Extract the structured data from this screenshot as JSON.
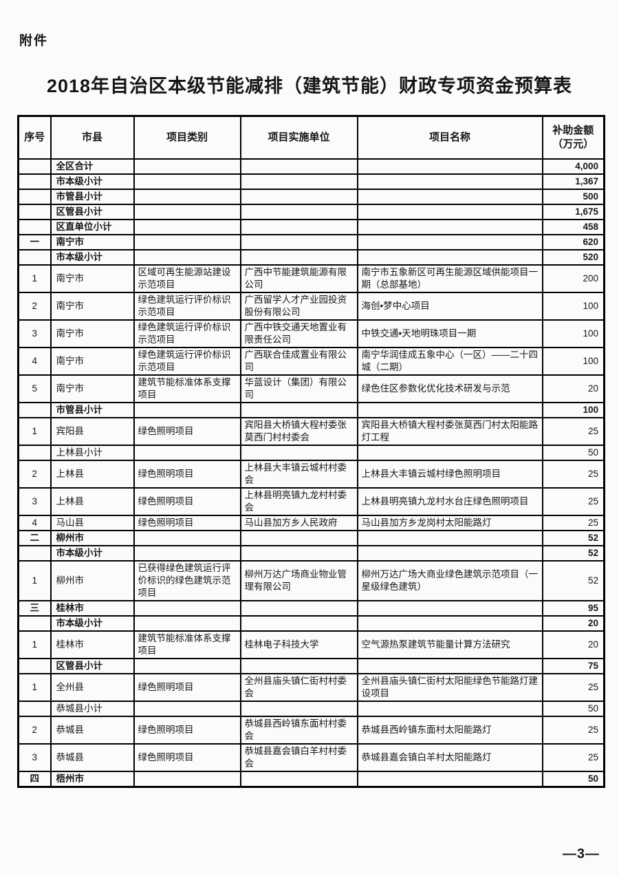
{
  "page": {
    "attachment_label": "附件",
    "title": "2018年自治区本级节能减排（建筑节能）财政专项资金预算表",
    "page_number": "—3—"
  },
  "table": {
    "headers": [
      "序号",
      "市县",
      "项目类别",
      "项目实施单位",
      "项目名称",
      "补助金额\n（万元）"
    ],
    "rows": [
      {
        "num": "",
        "region": "全区合计",
        "category": "",
        "unit": "",
        "name": "",
        "amount": "4,000",
        "bold": true
      },
      {
        "num": "",
        "region": "市本级小计",
        "category": "",
        "unit": "",
        "name": "",
        "amount": "1,367",
        "bold": true
      },
      {
        "num": "",
        "region": "市管县小计",
        "category": "",
        "unit": "",
        "name": "",
        "amount": "500",
        "bold": true
      },
      {
        "num": "",
        "region": "区管县小计",
        "category": "",
        "unit": "",
        "name": "",
        "amount": "1,675",
        "bold": true
      },
      {
        "num": "",
        "region": "区直单位小计",
        "category": "",
        "unit": "",
        "name": "",
        "amount": "458",
        "bold": true
      },
      {
        "num": "一",
        "region": "南宁市",
        "category": "",
        "unit": "",
        "name": "",
        "amount": "620",
        "bold": true
      },
      {
        "num": "",
        "region": "市本级小计",
        "category": "",
        "unit": "",
        "name": "",
        "amount": "520",
        "bold": true
      },
      {
        "num": "1",
        "region": "南宁市",
        "category": "区域可再生能源站建设示范项目",
        "unit": "广西中节能建筑能源有限公司",
        "name": "南宁市五象新区可再生能源区域供能项目一期（总部基地）",
        "amount": "200",
        "bold": false
      },
      {
        "num": "2",
        "region": "南宁市",
        "category": "绿色建筑运行评价标识示范项目",
        "unit": "广西留学人才产业园投资股份有限公司",
        "name": "海创•梦中心项目",
        "amount": "100",
        "bold": false
      },
      {
        "num": "3",
        "region": "南宁市",
        "category": "绿色建筑运行评价标识示范项目",
        "unit": "广西中铁交通天地置业有限责任公司",
        "name": "中铁交通•天地明珠项目一期",
        "amount": "100",
        "bold": false
      },
      {
        "num": "4",
        "region": "南宁市",
        "category": "绿色建筑运行评价标识示范项目",
        "unit": "广西联合佳成置业有限公司",
        "name": "南宁华润佳成五象中心（一区）——二十四城（二期）",
        "amount": "100",
        "bold": false
      },
      {
        "num": "5",
        "region": "南宁市",
        "category": "建筑节能标准体系支撑项目",
        "unit": "华蓝设计（集团）有限公司",
        "name": "绿色住区参数化优化技术研发与示范",
        "amount": "20",
        "bold": false
      },
      {
        "num": "",
        "region": "市管县小计",
        "category": "",
        "unit": "",
        "name": "",
        "amount": "100",
        "bold": true
      },
      {
        "num": "1",
        "region": "宾阳县",
        "category": "绿色照明项目",
        "unit": "宾阳县大桥镇大程村委张莫西门村村委会",
        "name": "宾阳县大桥镇大程村委张莫西门村太阳能路灯工程",
        "amount": "25",
        "bold": false
      },
      {
        "num": "",
        "region": "上林县小计",
        "category": "",
        "unit": "",
        "name": "",
        "amount": "50",
        "bold": false
      },
      {
        "num": "2",
        "region": "上林县",
        "category": "绿色照明项目",
        "unit": "上林县大丰镇云城村村委会",
        "name": "上林县大丰镇云城村绿色照明项目",
        "amount": "25",
        "bold": false
      },
      {
        "num": "3",
        "region": "上林县",
        "category": "绿色照明项目",
        "unit": "上林县明亮镇九龙村村委会",
        "name": "上林县明亮镇九龙村水台庄绿色照明项目",
        "amount": "25",
        "bold": false
      },
      {
        "num": "4",
        "region": "马山县",
        "category": "绿色照明项目",
        "unit": "马山县加方乡人民政府",
        "name": "马山县加方乡龙岗村太阳能路灯",
        "amount": "25",
        "bold": false
      },
      {
        "num": "二",
        "region": "柳州市",
        "category": "",
        "unit": "",
        "name": "",
        "amount": "52",
        "bold": true
      },
      {
        "num": "",
        "region": "市本级小计",
        "category": "",
        "unit": "",
        "name": "",
        "amount": "52",
        "bold": true
      },
      {
        "num": "1",
        "region": "柳州市",
        "category": "已获得绿色建筑运行评价标识的绿色建筑示范项目",
        "unit": "柳州万达广场商业物业管理有限公司",
        "name": "柳州万达广场大商业绿色建筑示范项目（一星级绿色建筑）",
        "amount": "52",
        "bold": false
      },
      {
        "num": "三",
        "region": "桂林市",
        "category": "",
        "unit": "",
        "name": "",
        "amount": "95",
        "bold": true
      },
      {
        "num": "",
        "region": "市本级小计",
        "category": "",
        "unit": "",
        "name": "",
        "amount": "20",
        "bold": true
      },
      {
        "num": "1",
        "region": "桂林市",
        "category": "建筑节能标准体系支撑项目",
        "unit": "桂林电子科技大学",
        "name": "空气源热泵建筑节能量计算方法研究",
        "amount": "20",
        "bold": false
      },
      {
        "num": "",
        "region": "区管县小计",
        "category": "",
        "unit": "",
        "name": "",
        "amount": "75",
        "bold": true
      },
      {
        "num": "1",
        "region": "全州县",
        "category": "绿色照明项目",
        "unit": "全州县庙头镇仁街村村委会",
        "name": "全州县庙头镇仁街村太阳能绿色节能路灯建设项目",
        "amount": "25",
        "bold": false
      },
      {
        "num": "",
        "region": "恭城县小计",
        "category": "",
        "unit": "",
        "name": "",
        "amount": "50",
        "bold": false
      },
      {
        "num": "2",
        "region": "恭城县",
        "category": "绿色照明项目",
        "unit": "恭城县西岭镇东面村村委会",
        "name": "恭城县西岭镇东面村太阳能路灯",
        "amount": "25",
        "bold": false
      },
      {
        "num": "3",
        "region": "恭城县",
        "category": "绿色照明项目",
        "unit": "恭城县嘉会镇白羊村村委会",
        "name": "恭城县嘉会镇白羊村太阳能路灯",
        "amount": "25",
        "bold": false
      },
      {
        "num": "四",
        "region": "梧州市",
        "category": "",
        "unit": "",
        "name": "",
        "amount": "50",
        "bold": true
      }
    ]
  }
}
